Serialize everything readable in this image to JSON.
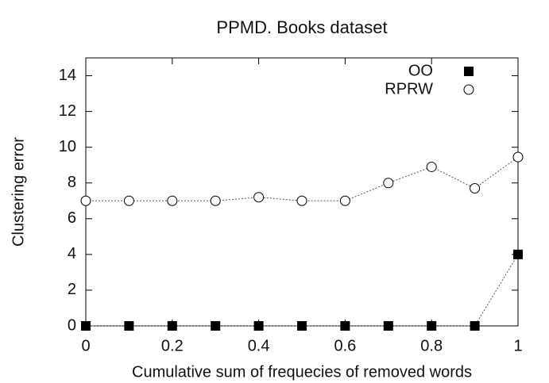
{
  "chart_data": {
    "type": "line",
    "title": "PPMD. Books dataset",
    "xlabel": "Cumulative sum of frequecies of removed words",
    "ylabel": "Clustering error",
    "x": [
      0,
      0.1,
      0.2,
      0.3,
      0.4,
      0.5,
      0.6,
      0.7,
      0.8,
      0.9,
      1
    ],
    "series": [
      {
        "name": "OO",
        "color": "#000000",
        "marker": "square",
        "values": [
          0,
          0,
          0,
          0,
          0,
          0,
          0,
          0,
          0,
          0,
          4
        ]
      },
      {
        "name": "RPRW",
        "color": "#000000",
        "marker": "circle",
        "values": [
          7,
          7,
          7,
          7,
          7.2,
          7,
          7,
          8,
          8.9,
          7.7,
          9.45
        ]
      }
    ],
    "xlim": [
      0,
      1
    ],
    "xticks": [
      0,
      0.2,
      0.4,
      0.6,
      0.8,
      1
    ],
    "ylim": [
      0,
      15
    ],
    "yticks": [
      0,
      2,
      4,
      6,
      8,
      10,
      12,
      14
    ],
    "legend": "top-right"
  }
}
